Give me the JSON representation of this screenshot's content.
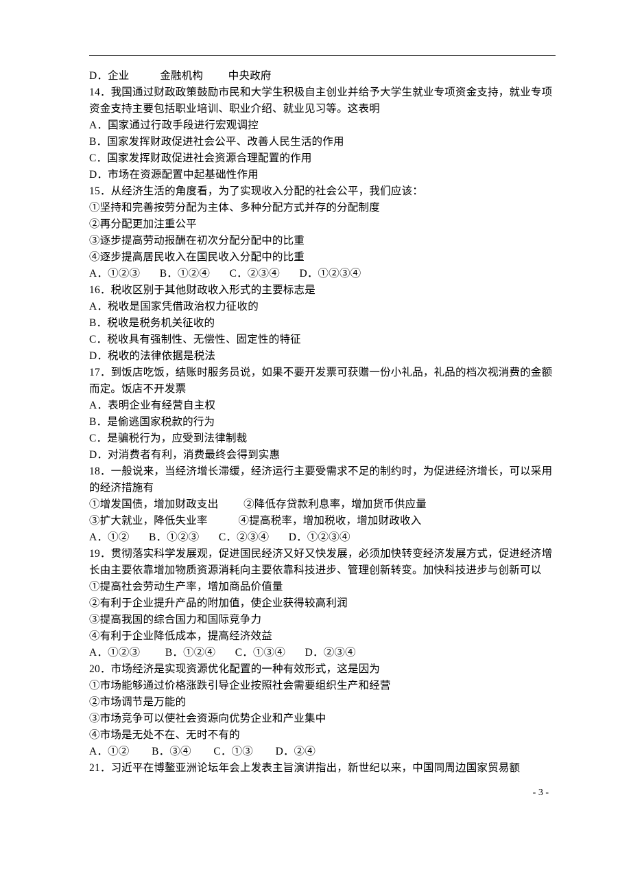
{
  "page_number": "- 3 -",
  "lines": [
    "D．企业           金融机构         中央政府",
    "14．我国通过财政政策鼓励市民和大学生积极自主创业并给予大学生就业专项资金支持，就业专项资金支持主要包括职业培训、职业介绍、就业见习等。这表明",
    "A．国家通过行政手段进行宏观调控",
    "B．国家发挥财政促进社会公平、改善人民生活的作用",
    "C．国家发挥财政促进社会资源合理配置的作用",
    "D．市场在资源配置中起基础性作用",
    "15．从经济生活的角度看，为了实现收入分配的社会公平，我们应该：",
    "①坚持和完善按劳分配为主体、多种分配方式并存的分配制度",
    "②再分配更加注重公平",
    "③逐步提高劳动报酬在初次分配分配中的比重",
    "④逐步提高居民收入在国民收入分配中的比重",
    "A．①②③       B．①②④       C．②③④       D．①②③④",
    "16．税收区别于其他财政收入形式的主要标志是",
    "A．税收是国家凭借政治权力征收的",
    "B．税收是税务机关征收的",
    "C．税收具有强制性、无偿性、固定性的特征",
    "D．税收的法律依据是税法",
    "17．到饭店吃饭，结账时服务员说，如果不要开发票可获赠一份小礼品，礼品的档次视消费的金额而定。饭店不开发票",
    "A．表明企业有经营自主权",
    "B．是偷逃国家税款的行为",
    "C．是骗税行为，应受到法律制裁",
    "D．对消费者有利，消费最终会得到实惠",
    "18．一般说来，当经济增长滞缓，经济运行主要受需求不足的制约时，为促进经济增长，可以采用的经济措施有",
    "①增发国债，增加财政支出         ②降低存贷款利息率，增加货币供应量",
    "③扩大就业，降低失业率           ④提高税率，增加税收，增加财政收入",
    "A．①②       B．①②③       C．②③④       D．①②③④",
    "19．贯彻落实科学发展观，促进国民经济又好又快发展，必须加快转变经济发展方式，促进经济增长由主要依靠增加物质资源消耗向主要依靠科技进步、管理创新转变。加快科技进步与创新可以",
    "①提高社会劳动生产率，增加商品价值量",
    "②有利于企业提升产品的附加值，使企业获得较高利润",
    "③提高我国的综合国力和国际竞争力",
    "④有利于企业降低成本，提高经济效益",
    "A．①②③         B．①②④       C．①③④       D．②③④",
    "20．市场经济是实现资源优化配置的一种有效形式，这是因为",
    "①市场能够通过价格涨跌引导企业按照社会需要组织生产和经营",
    "②市场调节是万能的",
    "③市场竞争可以使社会资源向优势企业和产业集中",
    "④市场是无处不在、无时不有的",
    "A．①②        B．③④        C．①③        D．②④",
    "21．习近平在博鳌亚洲论坛年会上发表主旨演讲指出，新世纪以来，中国同周边国家贸易额"
  ]
}
